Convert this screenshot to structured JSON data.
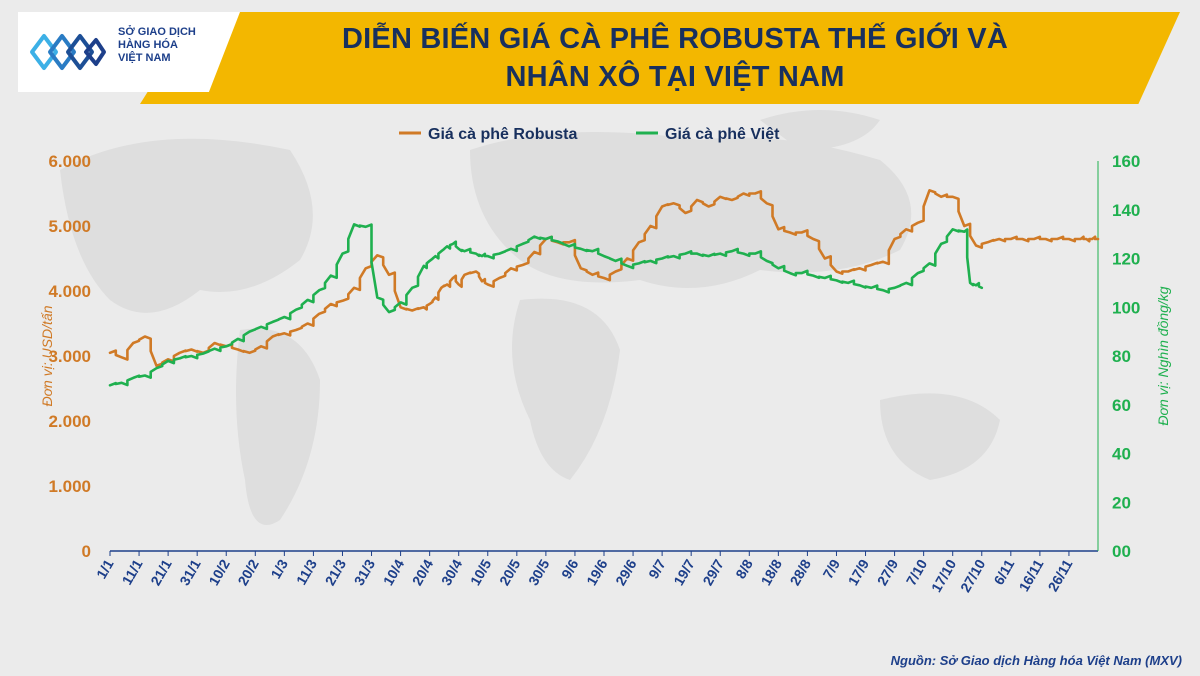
{
  "header": {
    "logo_lines": [
      "SỞ GIAO DỊCH",
      "HÀNG HÓA",
      "VIỆT NAM"
    ],
    "title_line1": "DIỄN BIẾN GIÁ CÀ PHÊ ROBUSTA THẾ GIỚI VÀ",
    "title_line2": "NHÂN XÔ TẠI VIỆT NAM"
  },
  "source": "Nguồn: Sở Giao dịch Hàng hóa Việt Nam (MXV)",
  "colors": {
    "robusta": "#d07a26",
    "viet": "#1fb04f",
    "axis_line": "#1d3f8a",
    "title": "#18305e",
    "banner": "#f3b700"
  },
  "chart_data": {
    "type": "line",
    "title": "DIỄN BIẾN GIÁ CÀ PHÊ ROBUSTA THẾ GIỚI VÀ NHÂN XÔ TẠI VIỆT NAM",
    "xlabel": "",
    "ylabel_left": "Đơn vị: USD/tấn",
    "ylabel_right": "Đơn vị: Nghìn đồng/kg",
    "ylim_left": [
      0,
      6000
    ],
    "ylim_right": [
      0,
      160
    ],
    "yticks_left": [
      "0",
      "1.000",
      "2.000",
      "3.000",
      "4.000",
      "5.000",
      "6.000"
    ],
    "yticks_right": [
      "00",
      "20",
      "40",
      "60",
      "80",
      "100",
      "120",
      "140",
      "160"
    ],
    "x_ticks": [
      "1/1",
      "11/1",
      "21/1",
      "31/1",
      "10/2",
      "20/2",
      "1/3",
      "11/3",
      "21/3",
      "31/3",
      "10/4",
      "20/4",
      "30/4",
      "10/5",
      "20/5",
      "30/5",
      "9/6",
      "19/6",
      "29/6",
      "9/7",
      "19/7",
      "29/7",
      "8/8",
      "18/8",
      "28/8",
      "7/9",
      "17/9",
      "27/9",
      "7/10",
      "17/10",
      "27/10",
      "6/11",
      "16/11",
      "26/11"
    ],
    "legend_position": "top",
    "grid": false,
    "series": [
      {
        "name": "Giá cà phê Robusta",
        "axis": "left",
        "color": "#d07a26",
        "x": [
          0,
          4,
          8,
          12,
          16,
          20,
          24,
          28,
          32,
          36,
          40,
          44,
          48,
          52,
          56,
          60,
          64,
          68,
          72,
          76,
          80,
          84,
          88,
          92,
          96,
          100,
          104,
          108,
          110,
          112,
          114,
          116,
          118,
          120,
          122,
          126,
          128,
          130,
          134,
          138,
          142,
          146,
          150,
          154,
          158,
          162,
          166,
          170,
          174,
          178,
          182,
          186,
          190,
          194,
          198,
          202,
          206,
          210,
          214,
          218,
          222,
          226,
          230,
          234,
          238,
          242,
          246,
          250,
          254,
          258,
          262,
          266,
          270,
          274,
          278,
          282,
          286,
          290,
          294,
          298,
          302,
          306,
          310,
          314,
          318,
          322,
          326,
          330,
          334,
          336,
          338,
          340
        ],
        "values": [
          3050,
          2980,
          3200,
          3300,
          2850,
          2950,
          3050,
          3100,
          3050,
          3200,
          3150,
          3100,
          3050,
          3150,
          3300,
          3350,
          3400,
          3500,
          3650,
          3800,
          3850,
          4050,
          4350,
          4550,
          4250,
          3750,
          3700,
          3750,
          3800,
          3900,
          4050,
          4100,
          4200,
          4100,
          4250,
          4300,
          4150,
          4100,
          4200,
          4350,
          4400,
          4600,
          4800,
          4750,
          4750,
          4350,
          4250,
          4200,
          4300,
          4500,
          4750,
          5000,
          5300,
          5350,
          5200,
          5400,
          5300,
          5450,
          5400,
          5500,
          5500,
          5350,
          4950,
          4900,
          4900,
          4800,
          4500,
          4300,
          4300,
          4350,
          4400,
          4450,
          4800,
          4950,
          5050,
          5550,
          5450,
          5450,
          5000,
          4700,
          4750,
          4800,
          4800,
          4800,
          4800,
          4800,
          4800,
          4800,
          4800,
          4800,
          4800,
          4800
        ],
        "note_end": "ends near 4.750 on the last day"
      },
      {
        "name": "Giá cà phê Việt",
        "axis": "right",
        "color": "#1fb04f",
        "x": [
          0,
          4,
          8,
          12,
          16,
          20,
          24,
          28,
          32,
          36,
          40,
          44,
          48,
          52,
          56,
          60,
          64,
          68,
          72,
          76,
          80,
          84,
          88,
          92,
          96,
          100,
          104,
          108,
          110,
          112,
          114,
          116,
          118,
          120,
          122,
          126,
          128,
          130,
          134,
          138,
          142,
          146,
          150,
          154,
          158,
          162,
          166,
          170,
          174,
          178,
          182,
          186,
          190,
          194,
          198,
          202,
          206,
          210,
          214,
          218,
          222,
          226,
          230,
          234,
          238,
          242,
          246,
          250,
          254,
          258,
          262,
          266,
          270,
          274,
          278,
          282,
          286,
          290,
          294,
          296,
          298,
          300
        ],
        "values": [
          68,
          69,
          71,
          72,
          75,
          78,
          79,
          80,
          81,
          83,
          84,
          87,
          90,
          92,
          94,
          96,
          99,
          103,
          107,
          113,
          122,
          134,
          133,
          104,
          98,
          102,
          108,
          117,
          119,
          121,
          123,
          125,
          126,
          124,
          123,
          122,
          121,
          121,
          122,
          124,
          126,
          129,
          128,
          127,
          125,
          124,
          123,
          121,
          119,
          117,
          118,
          119,
          120,
          121,
          122,
          122,
          121,
          122,
          123,
          122,
          122,
          119,
          116,
          114,
          114,
          113,
          112,
          111,
          110,
          109,
          108,
          107,
          108,
          110,
          114,
          118,
          126,
          132,
          131,
          110,
          109,
          108
        ]
      }
    ]
  }
}
